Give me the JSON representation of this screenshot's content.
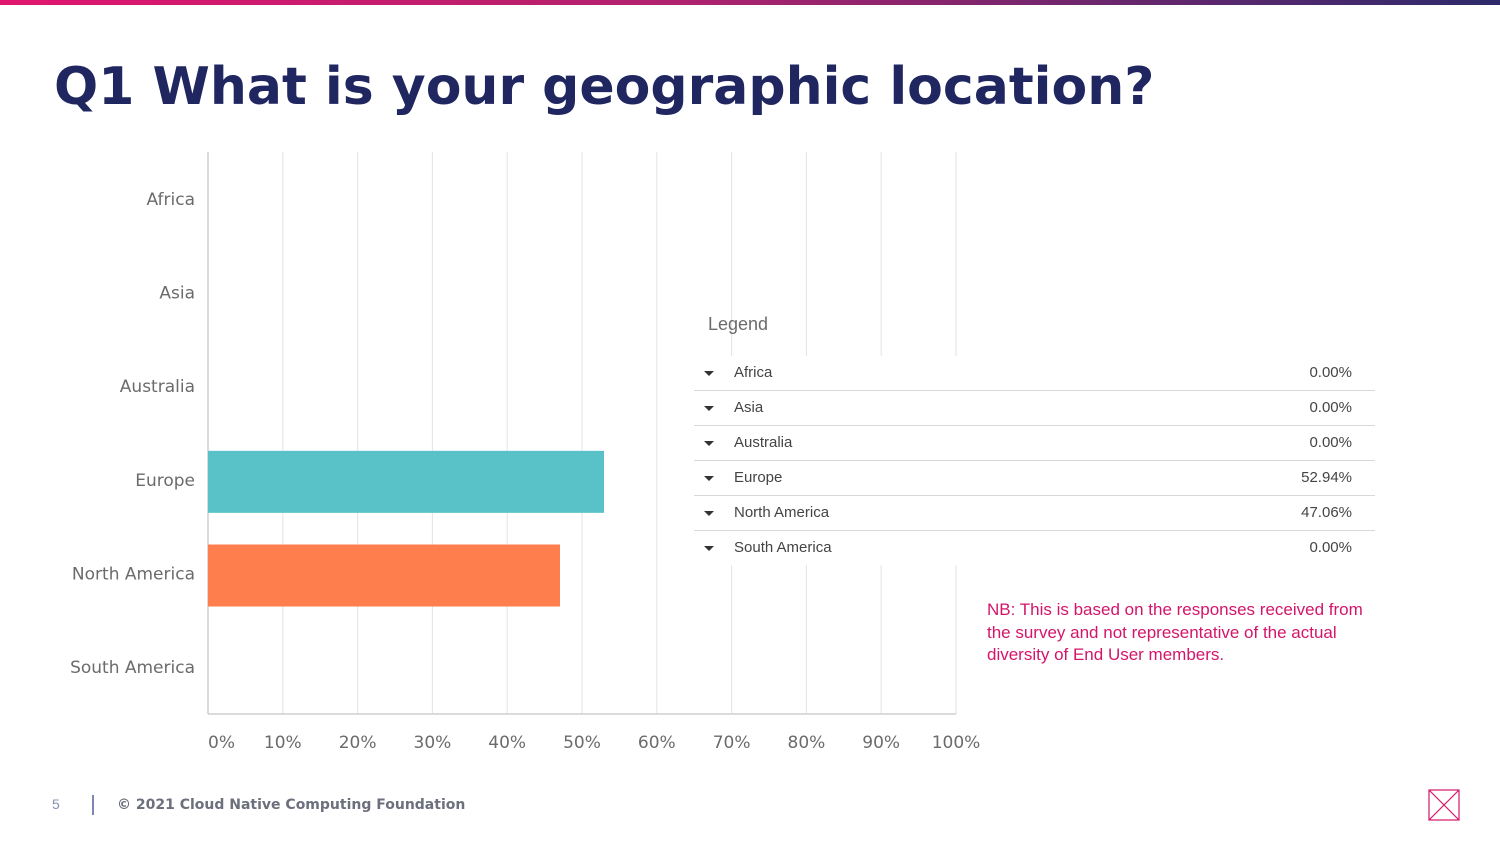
{
  "slide": {
    "title": "Q1 What is your geographic location?",
    "page_number": "5",
    "copyright": "© 2021 Cloud Native Computing Foundation",
    "note": "NB: This is based on the responses received from the survey and not representative of the actual diversity of End User members."
  },
  "legend": {
    "title": "Legend",
    "items": [
      {
        "label": "Africa",
        "value": "0.00%"
      },
      {
        "label": "Asia",
        "value": "0.00%"
      },
      {
        "label": "Australia",
        "value": "0.00%"
      },
      {
        "label": "Europe",
        "value": "52.94%"
      },
      {
        "label": "North America",
        "value": "47.06%"
      },
      {
        "label": "South America",
        "value": "0.00%"
      }
    ]
  },
  "colors": {
    "title": "#1f2660",
    "accent": "#d4156a",
    "europe": "#59c2c8",
    "north_america": "#fe7e4e",
    "grid": "#e3e3e3",
    "axis_text": "#6b6b6b"
  },
  "chart_data": {
    "type": "bar",
    "orientation": "horizontal",
    "categories": [
      "Africa",
      "Asia",
      "Australia",
      "Europe",
      "North America",
      "South America"
    ],
    "values": [
      0,
      0,
      0,
      52.94,
      47.06,
      0
    ],
    "xlim": [
      0,
      100
    ],
    "x_ticks": [
      "0%",
      "10%",
      "20%",
      "30%",
      "40%",
      "50%",
      "60%",
      "70%",
      "80%",
      "90%",
      "100%"
    ],
    "bar_colors": [
      "#59c2c8",
      "#59c2c8",
      "#59c2c8",
      "#59c2c8",
      "#fe7e4e",
      "#59c2c8"
    ],
    "grid": true
  }
}
